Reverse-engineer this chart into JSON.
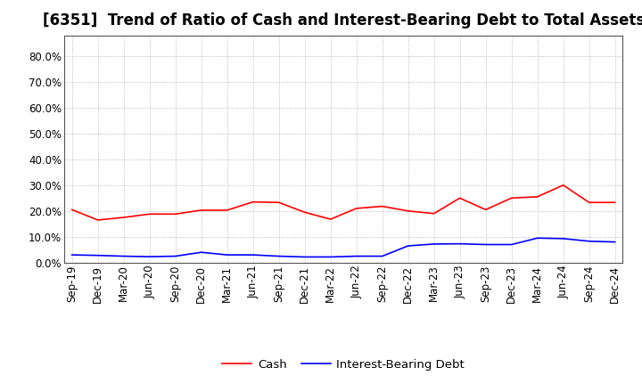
{
  "title": "[6351]  Trend of Ratio of Cash and Interest-Bearing Debt to Total Assets",
  "x_labels": [
    "Sep-19",
    "Dec-19",
    "Mar-20",
    "Jun-20",
    "Sep-20",
    "Dec-20",
    "Mar-21",
    "Jun-21",
    "Sep-21",
    "Dec-21",
    "Mar-22",
    "Jun-22",
    "Sep-22",
    "Dec-22",
    "Mar-23",
    "Jun-23",
    "Sep-23",
    "Dec-23",
    "Mar-24",
    "Jun-24",
    "Sep-24",
    "Dec-24"
  ],
  "cash": [
    0.205,
    0.165,
    0.175,
    0.188,
    0.188,
    0.203,
    0.203,
    0.235,
    0.233,
    0.195,
    0.168,
    0.21,
    0.218,
    0.2,
    0.19,
    0.25,
    0.205,
    0.25,
    0.255,
    0.3,
    0.233,
    0.233
  ],
  "ibd": [
    0.03,
    0.028,
    0.025,
    0.023,
    0.025,
    0.04,
    0.03,
    0.03,
    0.025,
    0.022,
    0.022,
    0.025,
    0.025,
    0.065,
    0.072,
    0.073,
    0.07,
    0.07,
    0.095,
    0.093,
    0.083,
    0.08
  ],
  "cash_color": "#FF0000",
  "ibd_color": "#0000FF",
  "ylim": [
    0.0,
    0.88
  ],
  "yticks": [
    0.0,
    0.1,
    0.2,
    0.3,
    0.4,
    0.5,
    0.6,
    0.7,
    0.8
  ],
  "background_color": "#FFFFFF",
  "grid_color": "#AAAAAA",
  "title_fontsize": 12,
  "axis_fontsize": 8.5,
  "legend_fontsize": 9.5
}
